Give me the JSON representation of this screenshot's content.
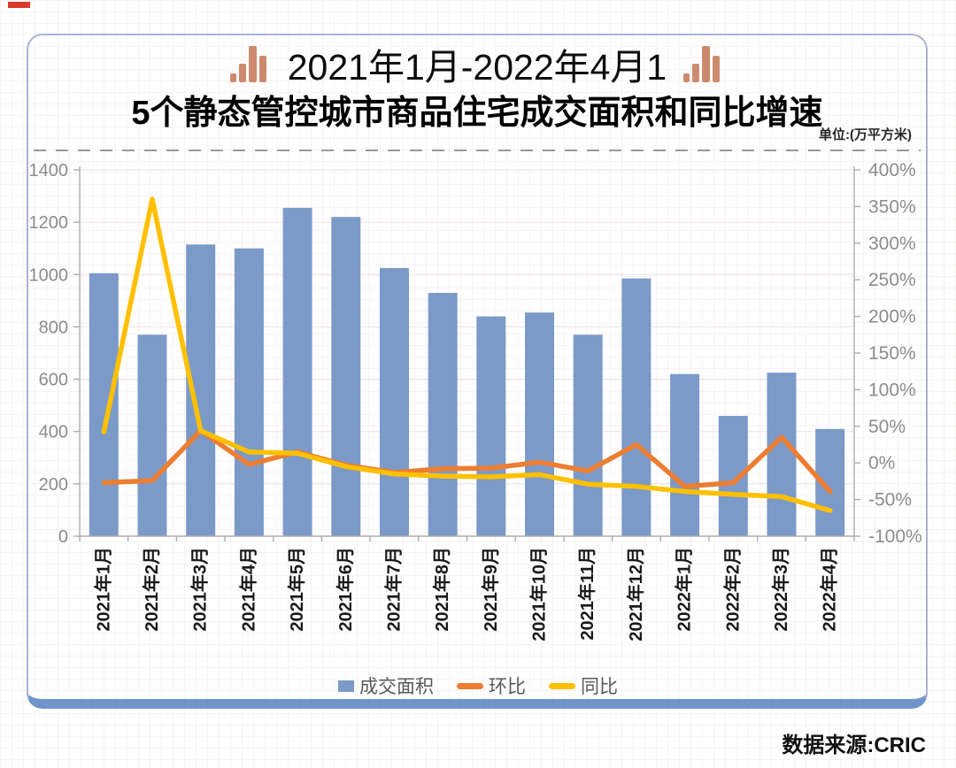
{
  "header": {
    "title_line1": "2021年1月-2022年4月1",
    "title_line2": "5个静态管控城市商品住宅成交面积和同比增速",
    "unit_label": "单位:(万平方米)"
  },
  "footer": {
    "source_note": "数据来源:CRIC"
  },
  "colors": {
    "bar_blue": "#7b9ac8",
    "mom_orange": "#ED7D31",
    "yoy_yellow": "#FFC000",
    "card_border": "#a9b3d4",
    "card_bottom_bar": "#6e94c9",
    "axis_gray": "#8c8c8c",
    "title_icon_salmon": "#cd8a6e"
  },
  "chart_data": {
    "type": "bar",
    "subtype": "combo-bar-line-dual-axis",
    "title": "5个静态管控城市商品住宅成交面积和同比增速",
    "unit": "万平方米",
    "grid": "faint",
    "legend_position": "bottom",
    "categories": [
      "2021年1月",
      "2021年2月",
      "2021年3月",
      "2021年4月",
      "2021年5月",
      "2021年6月",
      "2021年7月",
      "2021年8月",
      "2021年9月",
      "2021年10月",
      "2021年11月",
      "2021年12月",
      "2022年1月",
      "2022年2月",
      "2022年3月",
      "2022年4月"
    ],
    "series": [
      {
        "name": "成交面积",
        "type": "bar",
        "axis": "left",
        "color": "#7b9ac8",
        "values": [
          1005,
          770,
          1115,
          1100,
          1255,
          1220,
          1025,
          930,
          840,
          855,
          770,
          985,
          620,
          460,
          625,
          410
        ]
      },
      {
        "name": "环比",
        "type": "line",
        "axis": "right",
        "color": "#ED7D31",
        "unit": "%",
        "values": [
          -27,
          -24,
          44,
          -2,
          15,
          -3,
          -13,
          -8,
          -7,
          1,
          -11,
          25,
          -32,
          -27,
          35,
          -39
        ]
      },
      {
        "name": "同比",
        "type": "line",
        "axis": "right",
        "color": "#FFC000",
        "unit": "%",
        "values": [
          42,
          360,
          44,
          15,
          13,
          -5,
          -15,
          -18,
          -19,
          -16,
          -29,
          -32,
          -39,
          -43,
          -46,
          -65
        ]
      }
    ],
    "left_axis": {
      "min": 0,
      "max": 1400,
      "step": 200,
      "ticks": [
        0,
        200,
        400,
        600,
        800,
        1000,
        1200,
        1400
      ]
    },
    "right_axis": {
      "min": -100,
      "max": 400,
      "step": 50,
      "ticks": [
        "400%",
        "350%",
        "300%",
        "250%",
        "200%",
        "150%",
        "100%",
        "50%",
        "0%",
        "-50%",
        "-100%"
      ]
    }
  }
}
